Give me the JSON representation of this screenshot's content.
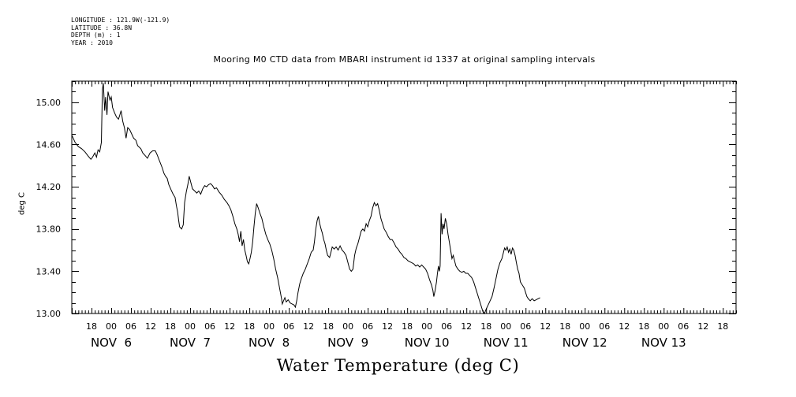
{
  "meta": {
    "longitude": "LONGITUDE : 121.9W(-121.9)",
    "latitude": "LATITUDE : 36.8N",
    "depth": "DEPTH (m) : 1",
    "year": "YEAR : 2010"
  },
  "chart_data": {
    "type": "line",
    "title": "Mooring M0 CTD data from MBARI instrument id 1337 at original sampling intervals",
    "xlabel": "Water Temperature (deg C)",
    "ylabel": "deg C",
    "ylim": [
      13.0,
      15.2
    ],
    "yticks": [
      13.0,
      13.4,
      13.8,
      14.2,
      14.6,
      15.0
    ],
    "ytick_labels": [
      "13.00",
      "13.40",
      "13.80",
      "14.20",
      "14.60",
      "15.00"
    ],
    "x_unit": "hours since Nov 5 12:00, 2010",
    "xlim": [
      0,
      202
    ],
    "hour_ticks": [
      {
        "x": 6,
        "label": "18"
      },
      {
        "x": 12,
        "label": "00"
      },
      {
        "x": 18,
        "label": "06"
      },
      {
        "x": 24,
        "label": "12"
      },
      {
        "x": 30,
        "label": "18"
      },
      {
        "x": 36,
        "label": "00"
      },
      {
        "x": 42,
        "label": "06"
      },
      {
        "x": 48,
        "label": "12"
      },
      {
        "x": 54,
        "label": "18"
      },
      {
        "x": 60,
        "label": "00"
      },
      {
        "x": 66,
        "label": "06"
      },
      {
        "x": 72,
        "label": "12"
      },
      {
        "x": 78,
        "label": "18"
      },
      {
        "x": 84,
        "label": "00"
      },
      {
        "x": 90,
        "label": "06"
      },
      {
        "x": 96,
        "label": "12"
      },
      {
        "x": 102,
        "label": "18"
      },
      {
        "x": 108,
        "label": "00"
      },
      {
        "x": 114,
        "label": "06"
      },
      {
        "x": 120,
        "label": "12"
      },
      {
        "x": 126,
        "label": "18"
      },
      {
        "x": 132,
        "label": "00"
      },
      {
        "x": 138,
        "label": "06"
      },
      {
        "x": 144,
        "label": "12"
      },
      {
        "x": 150,
        "label": "18"
      },
      {
        "x": 156,
        "label": "00"
      },
      {
        "x": 162,
        "label": "06"
      },
      {
        "x": 168,
        "label": "12"
      },
      {
        "x": 174,
        "label": "18"
      },
      {
        "x": 180,
        "label": "00"
      },
      {
        "x": 186,
        "label": "06"
      },
      {
        "x": 192,
        "label": "12"
      },
      {
        "x": 198,
        "label": "18"
      }
    ],
    "day_labels": [
      {
        "x": 12,
        "label": "NOV  6"
      },
      {
        "x": 36,
        "label": "NOV  7"
      },
      {
        "x": 60,
        "label": "NOV  8"
      },
      {
        "x": 84,
        "label": "NOV  9"
      },
      {
        "x": 108,
        "label": "NOV 10"
      },
      {
        "x": 132,
        "label": "NOV 11"
      },
      {
        "x": 156,
        "label": "NOV 12"
      },
      {
        "x": 180,
        "label": "NOV 13"
      }
    ],
    "series": [
      {
        "color": "#000000",
        "points": [
          [
            0.0,
            14.69
          ],
          [
            1.0,
            14.62
          ],
          [
            2.0,
            14.58
          ],
          [
            3.0,
            14.56
          ],
          [
            4.0,
            14.53
          ],
          [
            5.0,
            14.49
          ],
          [
            5.8,
            14.46
          ],
          [
            6.3,
            14.48
          ],
          [
            7.0,
            14.52
          ],
          [
            7.5,
            14.48
          ],
          [
            8.0,
            14.55
          ],
          [
            8.5,
            14.53
          ],
          [
            9.0,
            14.62
          ],
          [
            9.3,
            15.12
          ],
          [
            9.6,
            15.18
          ],
          [
            10.0,
            14.92
          ],
          [
            10.3,
            15.05
          ],
          [
            10.7,
            14.88
          ],
          [
            11.0,
            15.1
          ],
          [
            11.6,
            15.02
          ],
          [
            12.0,
            15.05
          ],
          [
            12.4,
            14.95
          ],
          [
            13.0,
            14.9
          ],
          [
            13.6,
            14.86
          ],
          [
            14.2,
            14.84
          ],
          [
            14.6,
            14.88
          ],
          [
            15.0,
            14.92
          ],
          [
            15.5,
            14.82
          ],
          [
            16.0,
            14.76
          ],
          [
            16.5,
            14.66
          ],
          [
            17.0,
            14.76
          ],
          [
            17.6,
            14.74
          ],
          [
            18.2,
            14.7
          ],
          [
            18.8,
            14.66
          ],
          [
            19.5,
            14.64
          ],
          [
            20.0,
            14.59
          ],
          [
            21.0,
            14.56
          ],
          [
            21.6,
            14.52
          ],
          [
            22.2,
            14.5
          ],
          [
            23.0,
            14.47
          ],
          [
            23.8,
            14.52
          ],
          [
            24.6,
            14.54
          ],
          [
            25.4,
            14.54
          ],
          [
            26.0,
            14.5
          ],
          [
            26.6,
            14.45
          ],
          [
            27.0,
            14.42
          ],
          [
            27.5,
            14.38
          ],
          [
            28.0,
            14.33
          ],
          [
            28.5,
            14.3
          ],
          [
            29.0,
            14.28
          ],
          [
            29.5,
            14.22
          ],
          [
            30.2,
            14.17
          ],
          [
            30.8,
            14.13
          ],
          [
            31.4,
            14.1
          ],
          [
            31.8,
            14.02
          ],
          [
            32.2,
            13.96
          ],
          [
            32.5,
            13.88
          ],
          [
            32.8,
            13.82
          ],
          [
            33.4,
            13.8
          ],
          [
            33.9,
            13.84
          ],
          [
            34.3,
            14.05
          ],
          [
            34.8,
            14.15
          ],
          [
            35.3,
            14.22
          ],
          [
            35.7,
            14.3
          ],
          [
            36.2,
            14.24
          ],
          [
            36.7,
            14.18
          ],
          [
            37.4,
            14.16
          ],
          [
            38.0,
            14.14
          ],
          [
            38.6,
            14.16
          ],
          [
            39.2,
            14.13
          ],
          [
            39.8,
            14.18
          ],
          [
            40.4,
            14.21
          ],
          [
            41.0,
            14.2
          ],
          [
            41.6,
            14.22
          ],
          [
            42.2,
            14.23
          ],
          [
            42.8,
            14.21
          ],
          [
            43.4,
            14.18
          ],
          [
            44.0,
            14.19
          ],
          [
            44.8,
            14.15
          ],
          [
            45.6,
            14.12
          ],
          [
            46.4,
            14.08
          ],
          [
            47.2,
            14.05
          ],
          [
            47.8,
            14.02
          ],
          [
            48.4,
            13.98
          ],
          [
            49.0,
            13.92
          ],
          [
            49.6,
            13.85
          ],
          [
            50.2,
            13.8
          ],
          [
            50.6,
            13.75
          ],
          [
            51.0,
            13.68
          ],
          [
            51.4,
            13.78
          ],
          [
            51.8,
            13.64
          ],
          [
            52.2,
            13.7
          ],
          [
            52.6,
            13.6
          ],
          [
            53.0,
            13.55
          ],
          [
            53.4,
            13.49
          ],
          [
            53.8,
            13.47
          ],
          [
            54.2,
            13.52
          ],
          [
            54.6,
            13.58
          ],
          [
            55.0,
            13.68
          ],
          [
            55.4,
            13.82
          ],
          [
            55.8,
            13.95
          ],
          [
            56.2,
            14.04
          ],
          [
            56.7,
            14.0
          ],
          [
            57.2,
            13.95
          ],
          [
            57.8,
            13.9
          ],
          [
            58.4,
            13.82
          ],
          [
            59.0,
            13.75
          ],
          [
            59.6,
            13.7
          ],
          [
            60.2,
            13.66
          ],
          [
            60.8,
            13.6
          ],
          [
            61.4,
            13.52
          ],
          [
            62.0,
            13.42
          ],
          [
            62.6,
            13.34
          ],
          [
            63.2,
            13.24
          ],
          [
            63.8,
            13.14
          ],
          [
            64.0,
            13.09
          ],
          [
            64.4,
            13.12
          ],
          [
            64.8,
            13.15
          ],
          [
            65.2,
            13.11
          ],
          [
            65.8,
            13.13
          ],
          [
            66.4,
            13.1
          ],
          [
            67.0,
            13.09
          ],
          [
            67.6,
            13.08
          ],
          [
            68.0,
            13.06
          ],
          [
            68.4,
            13.12
          ],
          [
            68.8,
            13.2
          ],
          [
            69.3,
            13.28
          ],
          [
            69.8,
            13.33
          ],
          [
            70.4,
            13.38
          ],
          [
            71.0,
            13.42
          ],
          [
            71.6,
            13.47
          ],
          [
            72.2,
            13.52
          ],
          [
            72.8,
            13.58
          ],
          [
            73.4,
            13.6
          ],
          [
            73.8,
            13.68
          ],
          [
            74.2,
            13.8
          ],
          [
            74.6,
            13.88
          ],
          [
            75.0,
            13.92
          ],
          [
            75.4,
            13.85
          ],
          [
            75.8,
            13.8
          ],
          [
            76.2,
            13.76
          ],
          [
            76.6,
            13.7
          ],
          [
            77.0,
            13.66
          ],
          [
            77.4,
            13.6
          ],
          [
            77.8,
            13.55
          ],
          [
            78.4,
            13.53
          ],
          [
            78.8,
            13.58
          ],
          [
            79.2,
            13.63
          ],
          [
            79.8,
            13.61
          ],
          [
            80.4,
            13.63
          ],
          [
            81.0,
            13.6
          ],
          [
            81.6,
            13.64
          ],
          [
            82.2,
            13.6
          ],
          [
            82.8,
            13.58
          ],
          [
            83.4,
            13.55
          ],
          [
            84.0,
            13.48
          ],
          [
            84.5,
            13.42
          ],
          [
            85.0,
            13.4
          ],
          [
            85.5,
            13.42
          ],
          [
            86.0,
            13.55
          ],
          [
            86.5,
            13.62
          ],
          [
            87.0,
            13.66
          ],
          [
            87.5,
            13.72
          ],
          [
            88.0,
            13.78
          ],
          [
            88.5,
            13.8
          ],
          [
            89.0,
            13.78
          ],
          [
            89.5,
            13.85
          ],
          [
            90.0,
            13.82
          ],
          [
            90.5,
            13.88
          ],
          [
            91.0,
            13.92
          ],
          [
            91.5,
            14.0
          ],
          [
            92.0,
            14.05
          ],
          [
            92.5,
            14.02
          ],
          [
            93.0,
            14.04
          ],
          [
            93.5,
            13.98
          ],
          [
            94.0,
            13.9
          ],
          [
            94.5,
            13.85
          ],
          [
            95.0,
            13.8
          ],
          [
            95.6,
            13.77
          ],
          [
            96.2,
            13.73
          ],
          [
            96.8,
            13.7
          ],
          [
            97.4,
            13.7
          ],
          [
            98.0,
            13.67
          ],
          [
            98.6,
            13.63
          ],
          [
            99.2,
            13.61
          ],
          [
            99.8,
            13.58
          ],
          [
            100.4,
            13.56
          ],
          [
            101.0,
            13.53
          ],
          [
            101.6,
            13.52
          ],
          [
            102.2,
            13.5
          ],
          [
            102.8,
            13.49
          ],
          [
            103.4,
            13.48
          ],
          [
            104.0,
            13.47
          ],
          [
            104.6,
            13.45
          ],
          [
            105.2,
            13.46
          ],
          [
            105.8,
            13.44
          ],
          [
            106.4,
            13.46
          ],
          [
            107.0,
            13.44
          ],
          [
            107.6,
            13.42
          ],
          [
            108.2,
            13.38
          ],
          [
            108.8,
            13.32
          ],
          [
            109.4,
            13.27
          ],
          [
            109.8,
            13.22
          ],
          [
            110.1,
            13.16
          ],
          [
            110.5,
            13.22
          ],
          [
            110.9,
            13.3
          ],
          [
            111.2,
            13.38
          ],
          [
            111.5,
            13.45
          ],
          [
            111.8,
            13.4
          ],
          [
            112.0,
            13.45
          ],
          [
            112.3,
            13.95
          ],
          [
            112.6,
            13.75
          ],
          [
            112.9,
            13.85
          ],
          [
            113.2,
            13.8
          ],
          [
            113.6,
            13.9
          ],
          [
            114.0,
            13.85
          ],
          [
            114.4,
            13.75
          ],
          [
            114.8,
            13.68
          ],
          [
            115.2,
            13.6
          ],
          [
            115.6,
            13.52
          ],
          [
            116.0,
            13.55
          ],
          [
            116.4,
            13.5
          ],
          [
            116.8,
            13.45
          ],
          [
            117.4,
            13.42
          ],
          [
            118.0,
            13.4
          ],
          [
            118.6,
            13.39
          ],
          [
            119.2,
            13.4
          ],
          [
            119.8,
            13.38
          ],
          [
            120.4,
            13.38
          ],
          [
            121.0,
            13.36
          ],
          [
            121.6,
            13.34
          ],
          [
            122.2,
            13.3
          ],
          [
            122.8,
            13.24
          ],
          [
            123.4,
            13.18
          ],
          [
            124.0,
            13.12
          ],
          [
            124.6,
            13.06
          ],
          [
            125.0,
            13.02
          ],
          [
            125.5,
            13.0
          ],
          [
            126.0,
            13.04
          ],
          [
            126.6,
            13.08
          ],
          [
            127.2,
            13.12
          ],
          [
            127.8,
            13.16
          ],
          [
            128.4,
            13.24
          ],
          [
            129.0,
            13.33
          ],
          [
            129.6,
            13.42
          ],
          [
            130.2,
            13.48
          ],
          [
            130.8,
            13.52
          ],
          [
            131.2,
            13.57
          ],
          [
            131.6,
            13.62
          ],
          [
            132.0,
            13.6
          ],
          [
            132.4,
            13.63
          ],
          [
            132.8,
            13.58
          ],
          [
            133.2,
            13.61
          ],
          [
            133.6,
            13.56
          ],
          [
            134.0,
            13.62
          ],
          [
            134.4,
            13.6
          ],
          [
            134.8,
            13.55
          ],
          [
            135.2,
            13.48
          ],
          [
            135.6,
            13.42
          ],
          [
            136.0,
            13.38
          ],
          [
            136.4,
            13.3
          ],
          [
            136.8,
            13.28
          ],
          [
            137.2,
            13.26
          ],
          [
            137.6,
            13.24
          ],
          [
            138.0,
            13.2
          ],
          [
            138.4,
            13.16
          ],
          [
            138.8,
            13.14
          ],
          [
            139.4,
            13.12
          ],
          [
            140.0,
            13.14
          ],
          [
            140.6,
            13.12
          ],
          [
            141.2,
            13.13
          ],
          [
            141.8,
            13.14
          ],
          [
            142.4,
            13.15
          ]
        ]
      }
    ]
  }
}
